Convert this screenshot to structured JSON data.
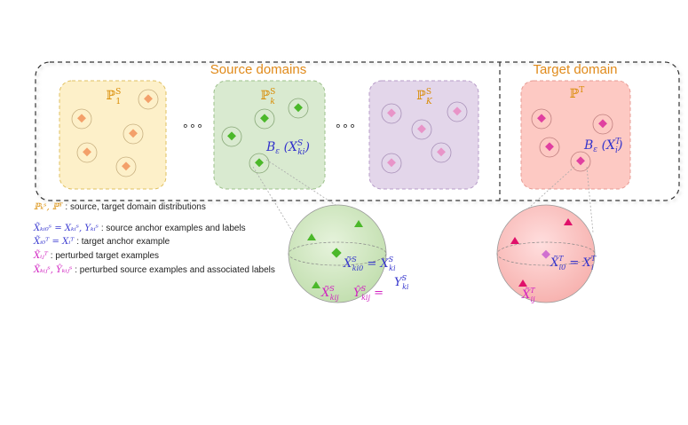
{
  "header": {
    "source_title": "Source domains",
    "target_title": "Target domain"
  },
  "source_boxes": [
    {
      "label": "ℙ₁ˢ",
      "fill": "#fdf0c9",
      "stroke": "#e0c060",
      "marker": "#f3a06a"
    },
    {
      "label": "ℙₖˢ",
      "fill": "#d9ead0",
      "stroke": "#9cc08a",
      "marker": "#4bb82a"
    },
    {
      "label": "ℙ_Kˢ",
      "fill": "#e3d6ea",
      "stroke": "#b79cc8",
      "marker": "#e894c8"
    }
  ],
  "ellipsis": [
    "∘∘∘",
    "∘∘∘"
  ],
  "target_box": {
    "label": "ℙᵀ",
    "fill": "#fdc9c3",
    "stroke": "#e79c94",
    "marker": "#e040a0"
  },
  "ball_labels": {
    "source": "B_ε (X_ki^S)",
    "target": "B_ε (X_i^T)"
  },
  "zoom_source": {
    "anchor": "X̃_ki0^S = X_ki^S",
    "anchor_label": "Y_ki^S",
    "perturbed_x": "X̃_kij^S",
    "perturbed_y": "Ŷ_kij^S ="
  },
  "zoom_target": {
    "anchor": "X̃_i0^T = X_i^T",
    "perturbed": "X̃_ij^T"
  },
  "legend": [
    {
      "sym": "ℙₖˢ, ℙᵀ",
      "text": ": source, target domain distributions",
      "color": "#d98a00"
    },
    {
      "sym": "X̃ₖᵢ₀ˢ = Xₖᵢˢ, Yₖᵢˢ",
      "text": ": source anchor examples and labels",
      "color": "#3a3ad0"
    },
    {
      "sym": "X̃ᵢ₀ᵀ = Xᵢᵀ",
      "text": ": target anchor example",
      "color": "#3a3ad0"
    },
    {
      "sym": "X̃ᵢⱼᵀ",
      "text": ": perturbed target examples",
      "color": "#d020c0"
    },
    {
      "sym": "X̃ₖᵢⱼˢ, Ŷₖᵢⱼˢ",
      "text": ": perturbed source examples and associated labels",
      "color": "#d020c0"
    }
  ],
  "colors": {
    "orange_text": "#e08a1a",
    "blue_text": "#3333cc",
    "magenta_text": "#d020c0"
  }
}
